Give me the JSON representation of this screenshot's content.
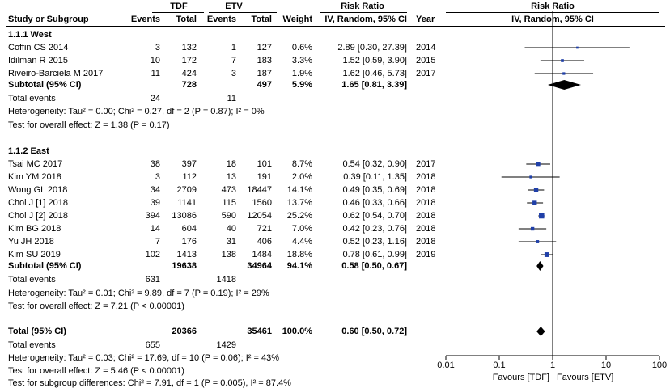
{
  "header": {
    "group1": "TDF",
    "group2": "ETV",
    "rr_title": "Risk Ratio",
    "rr_title_plot": "Risk Ratio",
    "col_study": "Study or Subgroup",
    "col_events1": "Events",
    "col_total1": "Total",
    "col_events2": "Events",
    "col_total2": "Total",
    "col_weight": "Weight",
    "col_method": "IV, Random, 95% CI",
    "col_year": "Year",
    "col_method_plot": "IV, Random, 95% CI"
  },
  "subgroups": [
    {
      "title": "1.1.1 West",
      "studies": [
        {
          "name": "Coffin CS 2014",
          "e1": "3",
          "t1": "132",
          "e2": "1",
          "t2": "127",
          "weight": "0.6%",
          "ci": "2.89 [0.30, 27.39]",
          "year": "2014",
          "rr": 2.89,
          "lo": 0.3,
          "hi": 27.39,
          "w": 0.6
        },
        {
          "name": "Idilman R 2015",
          "e1": "10",
          "t1": "172",
          "e2": "7",
          "t2": "183",
          "weight": "3.3%",
          "ci": "1.52 [0.59, 3.90]",
          "year": "2015",
          "rr": 1.52,
          "lo": 0.59,
          "hi": 3.9,
          "w": 3.3
        },
        {
          "name": "Riveiro-Barciela M 2017",
          "e1": "11",
          "t1": "424",
          "e2": "3",
          "t2": "187",
          "weight": "1.9%",
          "ci": "1.62 [0.46, 5.73]",
          "year": "2017",
          "rr": 1.62,
          "lo": 0.46,
          "hi": 5.73,
          "w": 1.9
        }
      ],
      "subtotal": {
        "label": "Subtotal (95% CI)",
        "t1": "728",
        "t2": "497",
        "weight": "5.9%",
        "ci": "1.65 [0.81, 3.39]",
        "rr": 1.65,
        "lo": 0.81,
        "hi": 3.39
      },
      "total_events": {
        "label": "Total events",
        "e1": "24",
        "e2": "11"
      },
      "heterogeneity": "Heterogeneity: Tau² = 0.00; Chi² = 0.27, df = 2 (P = 0.87); I² = 0%",
      "overall": "Test for overall effect: Z = 1.38 (P = 0.17)"
    },
    {
      "title": "1.1.2 East",
      "studies": [
        {
          "name": "Tsai MC 2017",
          "e1": "38",
          "t1": "397",
          "e2": "18",
          "t2": "101",
          "weight": "8.7%",
          "ci": "0.54 [0.32, 0.90]",
          "year": "2017",
          "rr": 0.54,
          "lo": 0.32,
          "hi": 0.9,
          "w": 8.7
        },
        {
          "name": "Kim YM 2018",
          "e1": "3",
          "t1": "112",
          "e2": "13",
          "t2": "191",
          "weight": "2.0%",
          "ci": "0.39 [0.11, 1.35]",
          "year": "2018",
          "rr": 0.39,
          "lo": 0.11,
          "hi": 1.35,
          "w": 2.0
        },
        {
          "name": "Wong GL 2018",
          "e1": "34",
          "t1": "2709",
          "e2": "473",
          "t2": "18447",
          "weight": "14.1%",
          "ci": "0.49 [0.35, 0.69]",
          "year": "2018",
          "rr": 0.49,
          "lo": 0.35,
          "hi": 0.69,
          "w": 14.1
        },
        {
          "name": "Choi J [1] 2018",
          "e1": "39",
          "t1": "1141",
          "e2": "115",
          "t2": "1560",
          "weight": "13.7%",
          "ci": "0.46 [0.33, 0.66]",
          "year": "2018",
          "rr": 0.46,
          "lo": 0.33,
          "hi": 0.66,
          "w": 13.7
        },
        {
          "name": "Choi J [2] 2018",
          "e1": "394",
          "t1": "13086",
          "e2": "590",
          "t2": "12054",
          "weight": "25.2%",
          "ci": "0.62 [0.54, 0.70]",
          "year": "2018",
          "rr": 0.62,
          "lo": 0.54,
          "hi": 0.7,
          "w": 25.2
        },
        {
          "name": "Kim BG 2018",
          "e1": "14",
          "t1": "604",
          "e2": "40",
          "t2": "721",
          "weight": "7.0%",
          "ci": "0.42 [0.23, 0.76]",
          "year": "2018",
          "rr": 0.42,
          "lo": 0.23,
          "hi": 0.76,
          "w": 7.0
        },
        {
          "name": "Yu JH 2018",
          "e1": "7",
          "t1": "176",
          "e2": "31",
          "t2": "406",
          "weight": "4.4%",
          "ci": "0.52 [0.23, 1.16]",
          "year": "2018",
          "rr": 0.52,
          "lo": 0.23,
          "hi": 1.16,
          "w": 4.4
        },
        {
          "name": "Kim SU 2019",
          "e1": "102",
          "t1": "1413",
          "e2": "138",
          "t2": "1484",
          "weight": "18.8%",
          "ci": "0.78 [0.61, 0.99]",
          "year": "2019",
          "rr": 0.78,
          "lo": 0.61,
          "hi": 0.99,
          "w": 18.8
        }
      ],
      "subtotal": {
        "label": "Subtotal (95% CI)",
        "t1": "19638",
        "t2": "34964",
        "weight": "94.1%",
        "ci": "0.58 [0.50, 0.67]",
        "rr": 0.58,
        "lo": 0.5,
        "hi": 0.67
      },
      "total_events": {
        "label": "Total events",
        "e1": "631",
        "e2": "1418"
      },
      "heterogeneity": "Heterogeneity: Tau² = 0.01; Chi² = 9.89, df = 7 (P = 0.19); I² = 29%",
      "overall": "Test for overall effect: Z = 7.21 (P < 0.00001)"
    }
  ],
  "total": {
    "label": "Total (95% CI)",
    "t1": "20366",
    "t2": "35461",
    "weight": "100.0%",
    "ci": "0.60 [0.50, 0.72]",
    "rr": 0.6,
    "lo": 0.5,
    "hi": 0.72
  },
  "total_events": {
    "label": "Total events",
    "e1": "655",
    "e2": "1429"
  },
  "footer": {
    "heterogeneity": "Heterogeneity: Tau² = 0.03; Chi² = 17.69, df = 10 (P = 0.06); I² = 43%",
    "overall": "Test for overall effect: Z = 5.46 (P < 0.00001)",
    "subgroup": "Test for subgroup differences: Chi² = 7.91, df = 1 (P = 0.005), I² = 87.4%"
  },
  "chart_data": {
    "type": "scatter",
    "plot": "forest",
    "x_scale": "log",
    "xlim": [
      0.01,
      100
    ],
    "x_ticks": [
      0.01,
      0.1,
      1,
      10,
      100
    ],
    "x_tick_labels": [
      "0.01",
      "0.1",
      "1",
      "10",
      "100"
    ],
    "reference_line": 1,
    "favours_left": "Favours [TDF]",
    "favours_right": "Favours [ETV]",
    "marker_color": "#1f3fa8"
  }
}
